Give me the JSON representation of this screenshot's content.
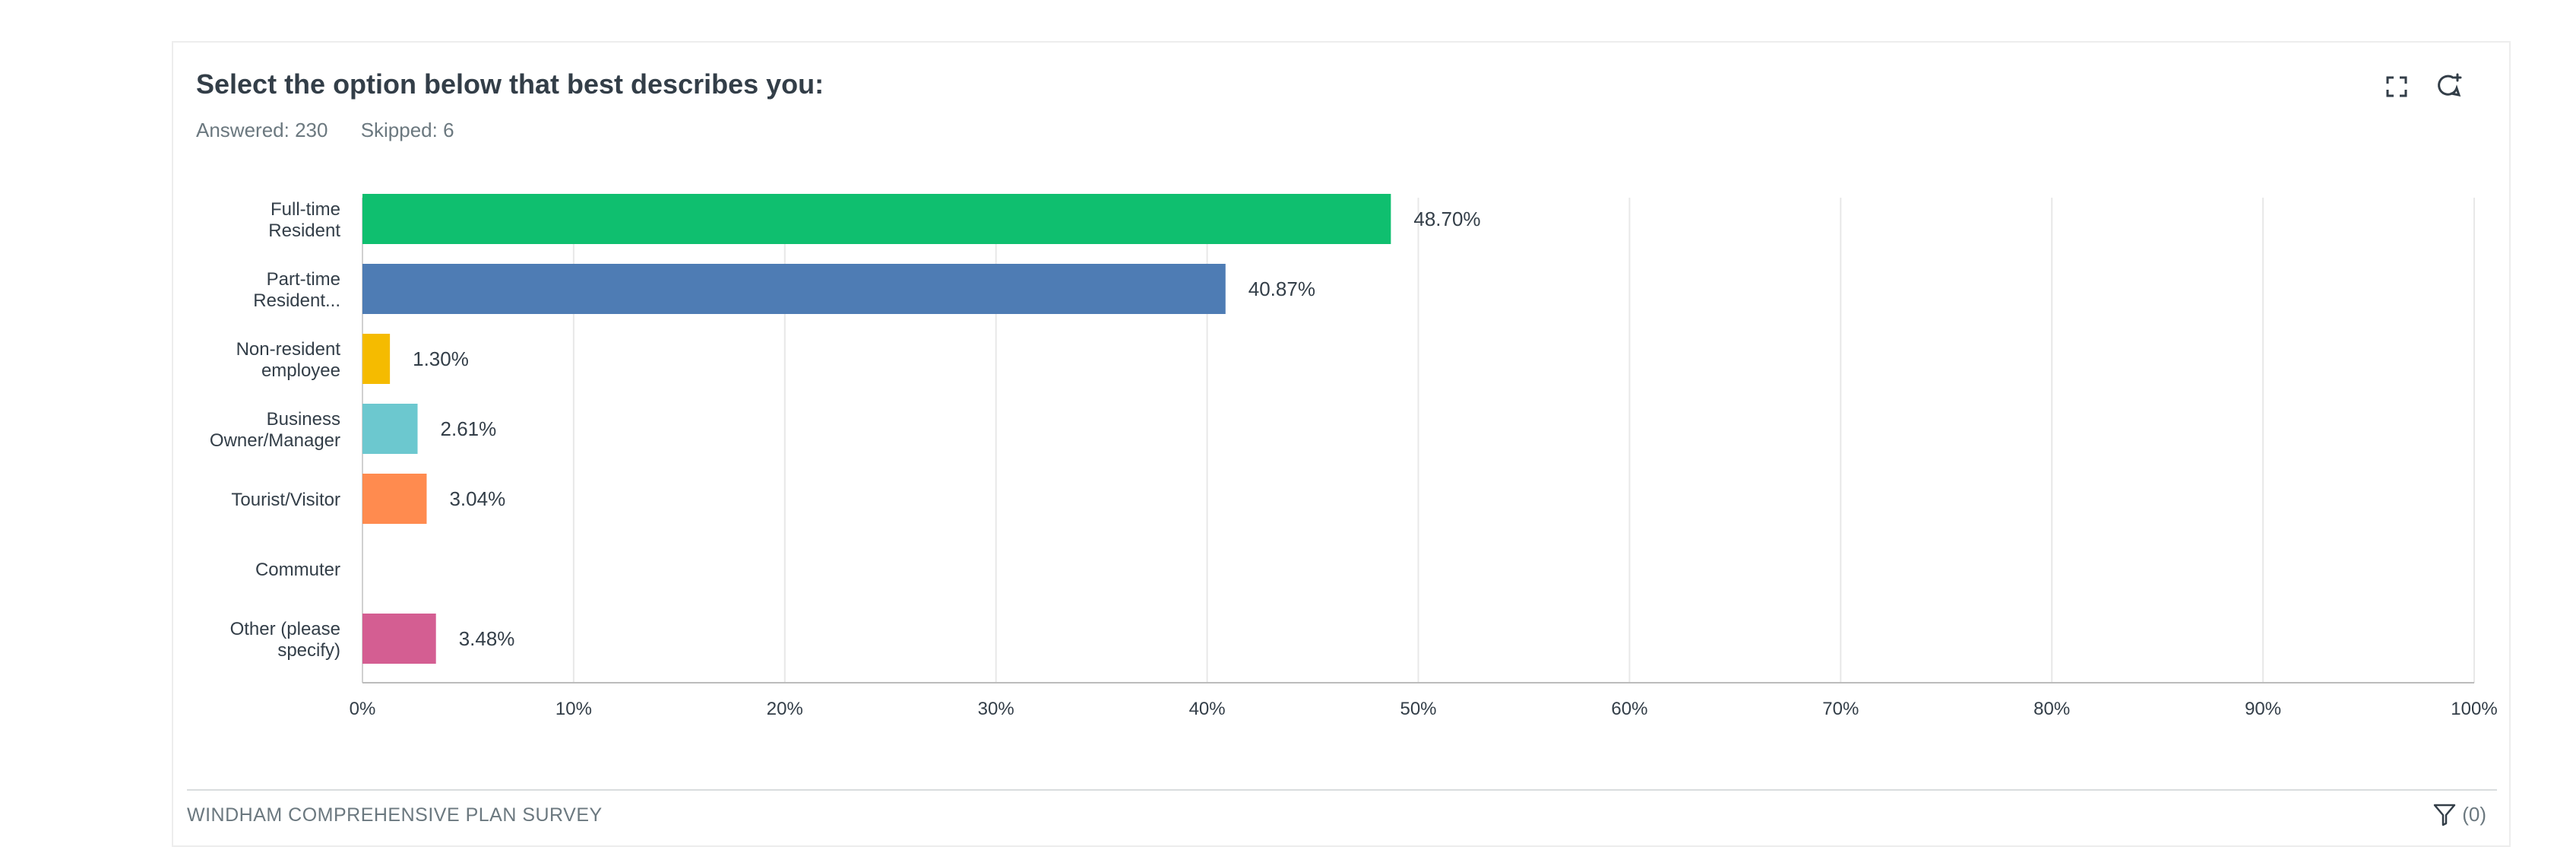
{
  "question": {
    "title": "Select the option below that best describes you:",
    "answered": "Answered: 230",
    "skipped": "Skipped: 6"
  },
  "toolbar": {
    "expand_icon": "expand-icon",
    "comment_icon": "comment-add-icon"
  },
  "footer": {
    "survey_name": "WINDHAM COMPREHENSIVE PLAN SURVEY",
    "filter_label": "(0)",
    "filter_icon": "filter-icon"
  },
  "chart_data": {
    "type": "bar",
    "orientation": "horizontal",
    "categories": [
      [
        "Full-time",
        "Resident"
      ],
      [
        "Part-time",
        "Resident..."
      ],
      [
        "Non-resident",
        "employee"
      ],
      [
        "Business",
        "Owner/Manager"
      ],
      [
        "Tourist/Visitor"
      ],
      [
        "Commuter"
      ],
      [
        "Other (please",
        "specify)"
      ]
    ],
    "values": [
      48.7,
      40.87,
      1.3,
      2.61,
      3.04,
      0,
      3.48
    ],
    "value_labels": [
      "48.70%",
      "40.87%",
      "1.30%",
      "2.61%",
      "3.04%",
      "",
      "3.48%"
    ],
    "colors": [
      "#0fbf6f",
      "#4e7cb4",
      "#f5bb00",
      "#6cc8cf",
      "#ff8b4f",
      "#a68ed1",
      "#d45e92"
    ],
    "xlim": [
      0,
      100
    ],
    "x_ticks": [
      0,
      10,
      20,
      30,
      40,
      50,
      60,
      70,
      80,
      90,
      100
    ],
    "x_tick_labels": [
      "0%",
      "10%",
      "20%",
      "30%",
      "40%",
      "50%",
      "60%",
      "70%",
      "80%",
      "90%",
      "100%"
    ],
    "grid": true
  }
}
